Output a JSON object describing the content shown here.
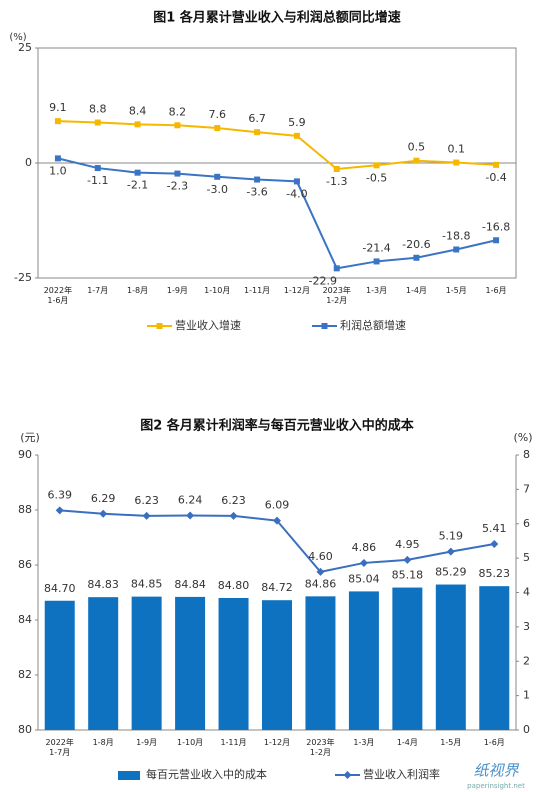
{
  "chart_data": [
    {
      "type": "line",
      "title": "图1  各月累计营业收入与利润总额同比增速",
      "y_unit": "(%)",
      "categories": [
        "2022年\n1-6月",
        "1-7月",
        "1-8月",
        "1-9月",
        "1-10月",
        "1-11月",
        "1-12月",
        "2023年\n1-2月",
        "1-3月",
        "1-4月",
        "1-5月",
        "1-6月"
      ],
      "ylim": [
        -25,
        25
      ],
      "yticks": [
        -25,
        0,
        25
      ],
      "frame": true,
      "series": [
        {
          "name": "营业收入增速",
          "color": "#f5b800",
          "marker": "square",
          "values": [
            9.1,
            8.8,
            8.4,
            8.2,
            7.6,
            6.7,
            5.9,
            -1.3,
            -0.5,
            0.5,
            0.1,
            -0.4
          ],
          "value_labels": [
            "9.1",
            "8.8",
            "8.4",
            "8.2",
            "7.6",
            "6.7",
            "5.9",
            "-1.3",
            "-0.5",
            "0.5",
            "0.1",
            "-0.4"
          ]
        },
        {
          "name": "利润总额增速",
          "color": "#3a74c4",
          "marker": "square",
          "values": [
            1.0,
            -1.1,
            -2.1,
            -2.3,
            -3.0,
            -3.6,
            -4.0,
            -22.9,
            -21.4,
            -20.6,
            -18.8,
            -16.8
          ],
          "value_labels": [
            "1.0",
            "-1.1",
            "-2.1",
            "-2.3",
            "-3.0",
            "-3.6",
            "-4.0",
            "-22.9",
            "-21.4",
            "-20.6",
            "-18.8",
            "-16.8"
          ]
        }
      ]
    },
    {
      "type": "bar-line",
      "title": "图2  各月累计利润率与每百元营业收入中的成本",
      "y_unit": "(元)",
      "y2_unit": "(%)",
      "categories": [
        "2022年\n1-7月",
        "1-8月",
        "1-9月",
        "1-10月",
        "1-11月",
        "1-12月",
        "2023年\n1-2月",
        "1-3月",
        "1-4月",
        "1-5月",
        "1-6月"
      ],
      "ylim": [
        80,
        90
      ],
      "yticks": [
        80,
        82,
        84,
        86,
        88,
        90
      ],
      "y2lim": [
        0,
        8
      ],
      "y2ticks": [
        0,
        1,
        2,
        3,
        4,
        5,
        6,
        7,
        8
      ],
      "frame": false,
      "series": [
        {
          "name": "每百元营业收入中的成本",
          "color": "#0f72c0",
          "kind": "bar",
          "values": [
            84.7,
            84.83,
            84.85,
            84.84,
            84.8,
            84.72,
            84.86,
            85.04,
            85.18,
            85.29,
            85.23
          ],
          "value_labels": [
            "84.70",
            "84.83",
            "84.85",
            "84.84",
            "84.80",
            "84.72",
            "84.86",
            "85.04",
            "85.18",
            "85.29",
            "85.23"
          ]
        },
        {
          "name": "营业收入利润率",
          "color": "#3a6fc0",
          "kind": "line",
          "axis": "y2",
          "marker": "diamond",
          "values": [
            6.39,
            6.29,
            6.23,
            6.24,
            6.23,
            6.09,
            4.6,
            4.86,
            4.95,
            5.19,
            5.41
          ],
          "value_labels": [
            "6.39",
            "6.29",
            "6.23",
            "6.24",
            "6.23",
            "6.09",
            "4.60",
            "4.86",
            "4.95",
            "5.19",
            "5.41"
          ]
        }
      ]
    }
  ],
  "watermark": {
    "brand": "纸视界",
    "url": "paperinsight.net"
  }
}
